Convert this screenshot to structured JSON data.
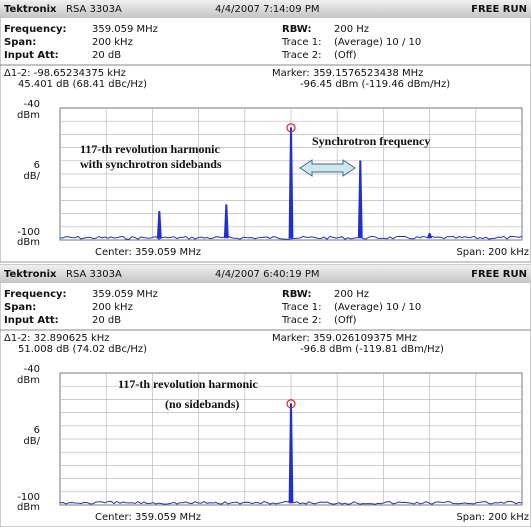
{
  "panels": [
    {
      "header": {
        "brand": "Tektronix",
        "model": "RSA 3303A",
        "datetime": "4/4/2007 7:14:09 PM",
        "status": "FREE RUN"
      },
      "settings": {
        "frequency_label": "Frequency:",
        "frequency": "359.059 MHz",
        "span_label": "Span:",
        "span": "200 kHz",
        "input_att_label": "Input Att:",
        "input_att": "20 dB",
        "rbw_label": "RBW:",
        "rbw": "200 Hz",
        "trace1_label": "Trace 1:",
        "trace1": "(Average)  10 / 10",
        "trace2_label": "Trace 2:",
        "trace2": "(Off)"
      },
      "readout": {
        "delta": "Δ1-2: -98.65234375 kHz",
        "delta_level": "45.401 dB (68.41 dBc/Hz)",
        "marker": "Marker: 359.1576523438 MHz",
        "marker_level": "-96.45 dBm (-119.46 dBm/Hz)"
      },
      "plot": {
        "top_unit": "dBm",
        "scale": 6,
        "scale_unit": "dB/",
        "bottom_unit": "dBm",
        "center": "Center: 359.059 MHz",
        "span": "Span: 200 kHz",
        "xlim": [
          -100,
          100
        ],
        "ylim": [
          -100,
          -40
        ],
        "noise_floor": -99,
        "peaks": {
          "x": [
            0,
            -57,
            -28,
            30,
            60
          ],
          "y": [
            -49,
            -87,
            -84,
            -64,
            -97
          ]
        },
        "annotations": [
          "117-th revolution harmonic",
          "with synchrotron  sidebands",
          "Synchrotron frequency"
        ]
      }
    },
    {
      "header": {
        "brand": "Tektronix",
        "model": "RSA 3303A",
        "datetime": "4/4/2007 6:40:19 PM",
        "status": "FREE RUN"
      },
      "settings": {
        "frequency_label": "Frequency:",
        "frequency": "359.059 MHz",
        "span_label": "Span:",
        "span": "200 kHz",
        "input_att_label": "Input Att:",
        "input_att": "20 dB",
        "rbw_label": "RBW:",
        "rbw": "200 Hz",
        "trace1_label": "Trace 1:",
        "trace1": "(Average)  10 / 10",
        "trace2_label": "Trace 2:",
        "trace2": "(Off)"
      },
      "readout": {
        "delta": "Δ1-2: 32.890625 kHz",
        "delta_level": "51.008 dB (74.02 dBc/Hz)",
        "marker": "Marker: 359.026109375 MHz",
        "marker_level": "-96.8 dBm (-119.81 dBm/Hz)"
      },
      "plot": {
        "top_unit": "dBm",
        "scale": 6,
        "scale_unit": "dB/",
        "bottom_unit": "dBm",
        "center": "Center: 359.059 MHz",
        "span": "Span: 200 kHz",
        "xlim": [
          -100,
          100
        ],
        "ylim": [
          -100,
          -40
        ],
        "noise_floor": -99,
        "peaks": {
          "x": [
            0
          ],
          "y": [
            -54
          ]
        },
        "annotations": [
          "117-th revolution harmonic",
          "(no sidebands)"
        ]
      }
    }
  ]
}
